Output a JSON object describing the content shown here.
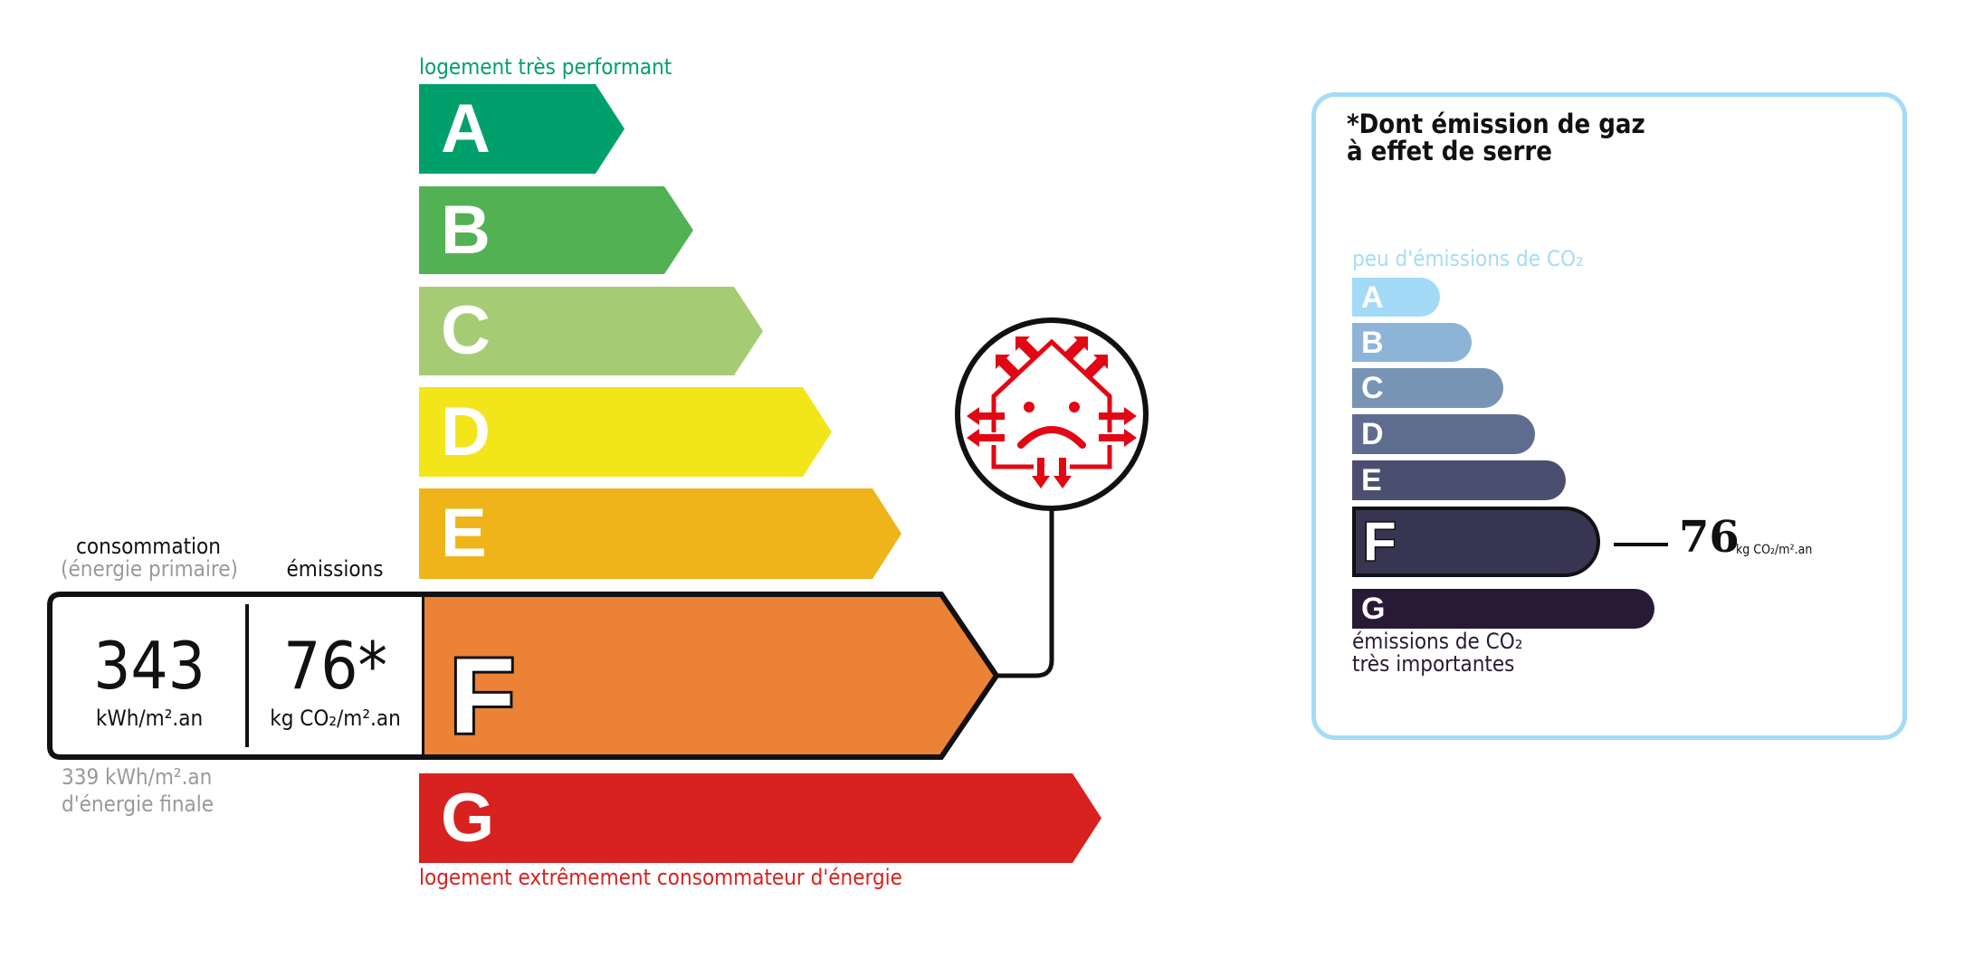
{
  "energy_scale": {
    "top_label": "logement très performant",
    "bottom_label": "logement extrêmement consommateur d'énergie",
    "top_label_color": "#00a06d",
    "bottom_label_color": "#d7221f",
    "classes": [
      {
        "letter": "A",
        "color": "#00a06d"
      },
      {
        "letter": "B",
        "color": "#52b153"
      },
      {
        "letter": "C",
        "color": "#a5cc74"
      },
      {
        "letter": "D",
        "color": "#f2e51a"
      },
      {
        "letter": "E",
        "color": "#f0b41b"
      },
      {
        "letter": "F",
        "color": "#eb8235"
      },
      {
        "letter": "G",
        "color": "#d7221f"
      }
    ],
    "current_class": "F"
  },
  "consumption": {
    "heading": "consommation",
    "subheading": "(énergie primaire)",
    "value": "343",
    "unit": "kWh/m².an",
    "final_value": "339 kWh/m².an",
    "final_label": "d'énergie finale"
  },
  "emissions": {
    "heading": "émissions",
    "value": "76*",
    "unit": "kg CO₂/m².an"
  },
  "ghg_panel": {
    "title_line1": "*Dont émission de gaz",
    "title_line2": "à effet de serre",
    "top_label": "peu d'émissions de CO₂",
    "bottom_line1": "émissions de CO₂",
    "bottom_line2": "très importantes",
    "border_color": "#a5dcf5",
    "classes": [
      {
        "letter": "A",
        "color": "#a3daf8"
      },
      {
        "letter": "B",
        "color": "#8db4d6"
      },
      {
        "letter": "C",
        "color": "#7794b4"
      },
      {
        "letter": "D",
        "color": "#5e6c8f"
      },
      {
        "letter": "E",
        "color": "#4b4f6f"
      },
      {
        "letter": "F",
        "color": "#383552"
      },
      {
        "letter": "G",
        "color": "#281a34"
      }
    ],
    "current_class": "F",
    "value": "76",
    "unit": "kg CO₂/m².an"
  },
  "icons": {
    "house": "house-heat-loss-sad-icon"
  }
}
